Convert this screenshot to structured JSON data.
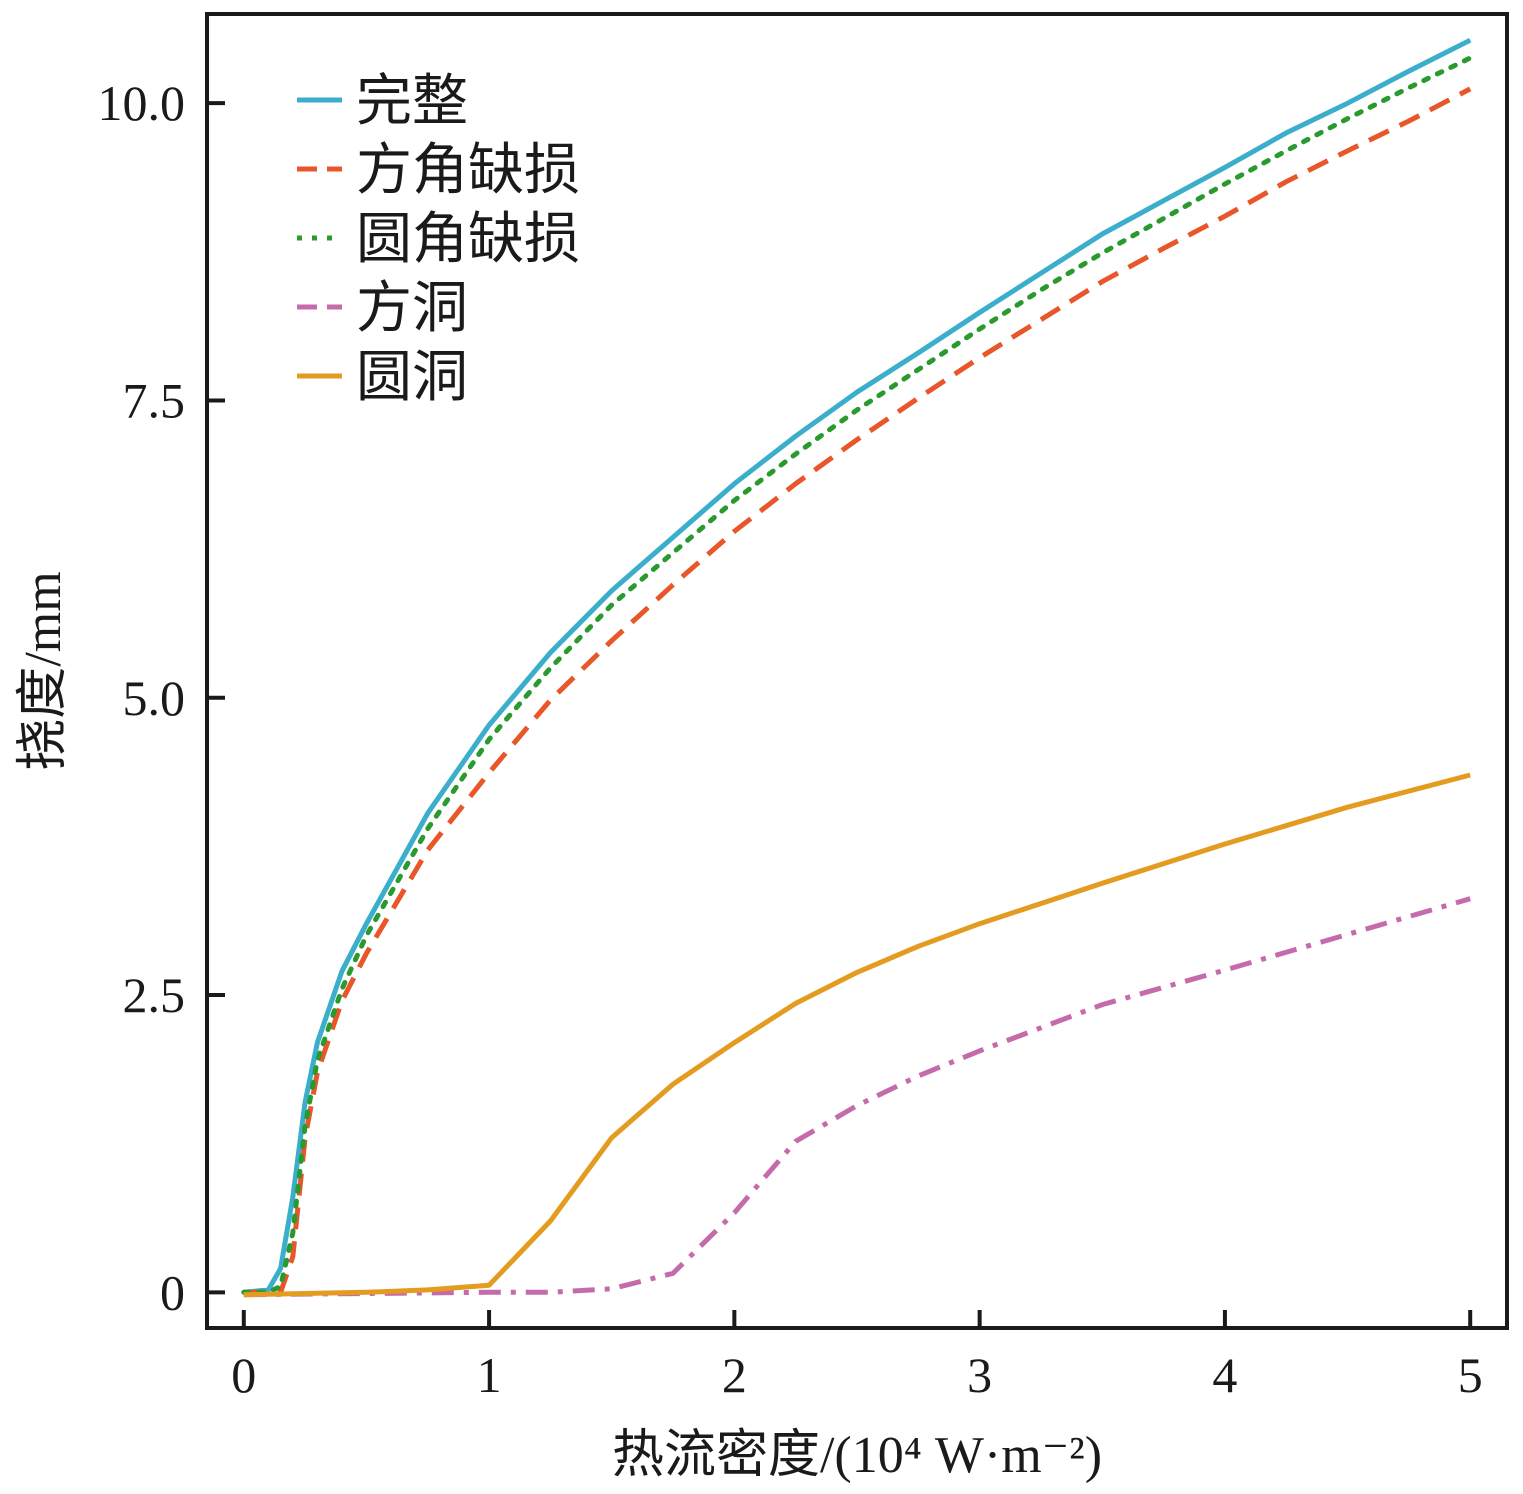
{
  "chart_data": {
    "type": "line",
    "title": "",
    "xlabel": "热流密度/(10⁴ W·m⁻²)",
    "ylabel": "挠度/mm",
    "xlim": [
      -0.15,
      5.15
    ],
    "ylim": [
      -0.3,
      10.75
    ],
    "xticks": [
      0,
      1,
      2,
      3,
      4,
      5
    ],
    "xtick_labels": [
      "0",
      "1",
      "2",
      "3",
      "4",
      "5"
    ],
    "yticks": [
      0,
      2.5,
      5.0,
      7.5,
      10.0
    ],
    "ytick_labels": [
      "0",
      "2.5",
      "5.0",
      "7.5",
      "10.0"
    ],
    "grid": false,
    "legend_position": "top-left",
    "series": [
      {
        "name": "完整",
        "color": "#3aaecb",
        "style": "solid",
        "x": [
          0,
          0.1,
          0.15,
          0.2,
          0.25,
          0.3,
          0.4,
          0.5,
          0.75,
          1,
          1.25,
          1.5,
          1.75,
          2,
          2.25,
          2.5,
          2.75,
          3,
          3.25,
          3.5,
          3.75,
          4,
          4.25,
          4.5,
          4.75,
          5
        ],
        "y": [
          0,
          0.02,
          0.2,
          0.8,
          1.6,
          2.1,
          2.7,
          3.1,
          4.03,
          4.77,
          5.38,
          5.9,
          6.35,
          6.8,
          7.2,
          7.57,
          7.9,
          8.24,
          8.57,
          8.9,
          9.18,
          9.46,
          9.75,
          10.0,
          10.27,
          10.53
        ]
      },
      {
        "name": "方角缺损",
        "color": "#e8562a",
        "style": "dashed",
        "x": [
          0,
          0.1,
          0.15,
          0.2,
          0.25,
          0.3,
          0.4,
          0.5,
          0.75,
          1,
          1.25,
          1.5,
          1.75,
          2,
          2.25,
          2.5,
          2.75,
          3,
          3.25,
          3.5,
          3.75,
          4,
          4.25,
          4.5,
          4.75,
          5
        ],
        "y": [
          0,
          0,
          0,
          0.3,
          1.3,
          1.85,
          2.45,
          2.85,
          3.72,
          4.37,
          4.98,
          5.48,
          5.95,
          6.4,
          6.8,
          7.17,
          7.52,
          7.86,
          8.18,
          8.5,
          8.78,
          9.05,
          9.34,
          9.6,
          9.85,
          10.12
        ]
      },
      {
        "name": "圆角缺损",
        "color": "#2a9a2e",
        "style": "dotted",
        "x": [
          0,
          0.1,
          0.15,
          0.2,
          0.25,
          0.3,
          0.4,
          0.5,
          0.75,
          1,
          1.25,
          1.5,
          1.75,
          2,
          2.25,
          2.5,
          2.75,
          3,
          3.25,
          3.5,
          3.75,
          4,
          4.25,
          4.5,
          4.75,
          5
        ],
        "y": [
          0,
          0,
          0.05,
          0.5,
          1.4,
          1.95,
          2.55,
          3.0,
          3.9,
          4.65,
          5.25,
          5.78,
          6.22,
          6.66,
          7.05,
          7.42,
          7.76,
          8.1,
          8.43,
          8.74,
          9.03,
          9.32,
          9.6,
          9.87,
          10.13,
          10.38
        ]
      },
      {
        "name": "方洞",
        "color": "#c56bab",
        "style": "dashdot",
        "x": [
          0,
          0.5,
          1,
          1.25,
          1.5,
          1.75,
          2,
          2.25,
          2.5,
          2.75,
          3,
          3.5,
          4,
          4.5,
          5
        ],
        "y": [
          -0.02,
          -0.01,
          0,
          0,
          0.03,
          0.16,
          0.67,
          1.27,
          1.57,
          1.82,
          2.03,
          2.42,
          2.71,
          3.01,
          3.31
        ]
      },
      {
        "name": "圆洞",
        "color": "#e39b20",
        "style": "solid",
        "x": [
          0,
          0.25,
          0.5,
          0.75,
          1,
          1.25,
          1.5,
          1.75,
          2,
          2.25,
          2.5,
          2.75,
          3,
          3.5,
          4,
          4.5,
          5
        ],
        "y": [
          -0.02,
          -0.01,
          0,
          0.02,
          0.06,
          0.6,
          1.3,
          1.75,
          2.1,
          2.43,
          2.69,
          2.91,
          3.1,
          3.44,
          3.77,
          4.08,
          4.35
        ]
      }
    ]
  }
}
